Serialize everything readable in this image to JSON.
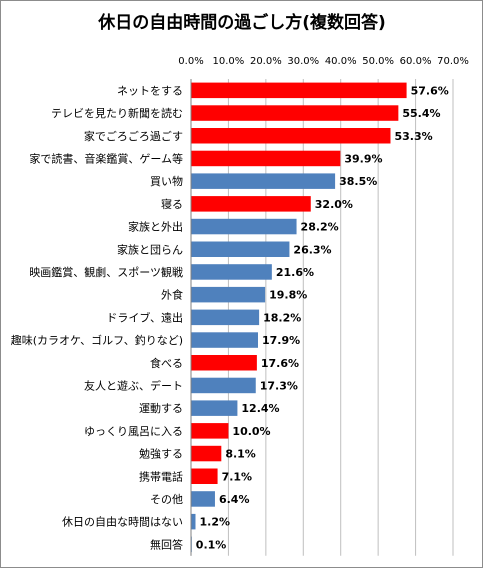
{
  "chart_data": {
    "type": "bar",
    "orientation": "horizontal",
    "title": "休日の自由時間の過ごし方(複数回答)",
    "xlabel": "",
    "ylabel": "",
    "xlim": [
      0,
      70
    ],
    "x_ticks": [
      "0.0%",
      "10.0%",
      "20.0%",
      "30.0%",
      "40.0%",
      "50.0%",
      "60.0%",
      "70.0%"
    ],
    "x_axis_position": "top",
    "grid": true,
    "legend": "none",
    "colors": {
      "highlight": "#ff0000",
      "normal": "#4f81bd"
    },
    "categories": [
      "ネットをする",
      "テレビを見たり新聞を読む",
      "家でごろごろ過ごす",
      "家で読書、音楽鑑賞、ゲーム等",
      "買い物",
      "寝る",
      "家族と外出",
      "家族と団らん",
      "映画鑑賞、観劇、スポーツ観戦",
      "外食",
      "ドライブ、遠出",
      "趣味(カラオケ、ゴルフ、釣りなど)",
      "食べる",
      "友人と遊ぶ、デート",
      "運動する",
      "ゆっくり風呂に入る",
      "勉強する",
      "携帯電話",
      "その他",
      "休日の自由な時間はない",
      "無回答"
    ],
    "values": [
      57.6,
      55.4,
      53.3,
      39.9,
      38.5,
      32.0,
      28.2,
      26.3,
      21.6,
      19.8,
      18.2,
      17.9,
      17.6,
      17.3,
      12.4,
      10.0,
      8.1,
      7.1,
      6.4,
      1.2,
      0.1
    ],
    "value_labels": [
      "57.6%",
      "55.4%",
      "53.3%",
      "39.9%",
      "38.5%",
      "32.0%",
      "28.2%",
      "26.3%",
      "21.6%",
      "19.8%",
      "18.2%",
      "17.9%",
      "17.6%",
      "17.3%",
      "12.4%",
      "10.0%",
      "8.1%",
      "7.1%",
      "6.4%",
      "1.2%",
      "0.1%"
    ],
    "highlighted": [
      true,
      true,
      true,
      true,
      false,
      true,
      false,
      false,
      false,
      false,
      false,
      false,
      true,
      false,
      false,
      true,
      true,
      true,
      false,
      false,
      false
    ]
  }
}
